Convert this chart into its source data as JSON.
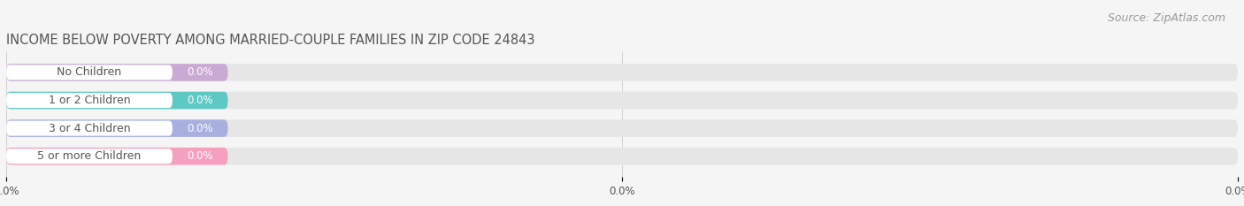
{
  "title": "INCOME BELOW POVERTY AMONG MARRIED-COUPLE FAMILIES IN ZIP CODE 24843",
  "source": "Source: ZipAtlas.com",
  "categories": [
    "No Children",
    "1 or 2 Children",
    "3 or 4 Children",
    "5 or more Children"
  ],
  "values": [
    0.0,
    0.0,
    0.0,
    0.0
  ],
  "bar_colors": [
    "#caaad4",
    "#5ec8c5",
    "#a8b0e0",
    "#f4a0be"
  ],
  "bar_bg_color": "#e6e6e6",
  "label_bg_color": "#ffffff",
  "background_color": "#f5f5f5",
  "label_color": "#555555",
  "value_color": "#ffffff",
  "title_color": "#555555",
  "source_color": "#999999",
  "bar_height": 0.62,
  "figsize": [
    14.06,
    2.33
  ],
  "dpi": 100,
  "title_fontsize": 10.5,
  "label_fontsize": 9,
  "value_fontsize": 8.5,
  "tick_fontsize": 8.5,
  "source_fontsize": 9
}
